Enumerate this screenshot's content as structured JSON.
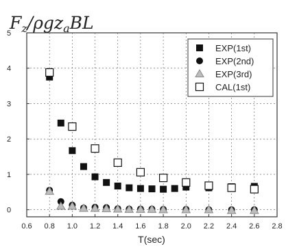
{
  "chart_data": {
    "type": "scatter",
    "title": "F_z/ρgz_aBL",
    "xlabel": "T(sec)",
    "ylabel": "",
    "xlim": [
      0.6,
      2.8
    ],
    "ylim": [
      -0.2,
      5
    ],
    "xticks": [
      "0.6",
      "0.8",
      "1.0",
      "1.2",
      "1.4",
      "1.6",
      "1.8",
      "2.0",
      "2.2",
      "2.4",
      "2.6",
      "2.8"
    ],
    "yticks": [
      "0",
      "1",
      "2",
      "3",
      "4",
      "5"
    ],
    "grid": true,
    "legend_position": "top-right",
    "series": [
      {
        "name": "EXP(1st)",
        "marker": "filled-square",
        "color": "#111111",
        "x": [
          0.8,
          0.9,
          1.0,
          1.1,
          1.2,
          1.3,
          1.4,
          1.5,
          1.6,
          1.7,
          1.8,
          1.9,
          2.0,
          2.2,
          2.4,
          2.6
        ],
        "y": [
          3.75,
          2.45,
          1.67,
          1.22,
          0.93,
          0.77,
          0.67,
          0.62,
          0.6,
          0.59,
          0.58,
          0.6,
          0.64,
          0.62,
          0.65,
          0.66
        ]
      },
      {
        "name": "EXP(2nd)",
        "marker": "filled-circle",
        "color": "#111111",
        "x": [
          0.8,
          0.9,
          1.0,
          1.1,
          1.2,
          1.3,
          1.4,
          1.5,
          1.6,
          1.7,
          1.8,
          2.0,
          2.2,
          2.4,
          2.6
        ],
        "y": [
          0.55,
          0.23,
          0.13,
          0.05,
          0.07,
          0.06,
          0.03,
          0.02,
          0.02,
          0.02,
          0.01,
          0.01,
          0.0,
          0.0,
          0.0
        ]
      },
      {
        "name": "EXP(3rd)",
        "marker": "triangle",
        "color": "#888888",
        "x": [
          0.8,
          0.9,
          1.0,
          1.1,
          1.2,
          1.3,
          1.4,
          1.5,
          1.6,
          1.7,
          1.8,
          2.0,
          2.2,
          2.4,
          2.6
        ],
        "y": [
          0.52,
          0.1,
          0.1,
          0.04,
          0.04,
          0.03,
          0.02,
          0.01,
          0.01,
          0.01,
          0.0,
          0.0,
          0.0,
          -0.02,
          -0.02
        ]
      },
      {
        "name": "CAL(1st)",
        "marker": "open-square",
        "color": "#111111",
        "x": [
          0.8,
          1.0,
          1.2,
          1.4,
          1.6,
          1.8,
          2.0,
          2.2,
          2.4,
          2.6
        ],
        "y": [
          3.88,
          2.35,
          1.73,
          1.33,
          1.06,
          0.9,
          0.77,
          0.68,
          0.62,
          0.58
        ]
      }
    ]
  }
}
